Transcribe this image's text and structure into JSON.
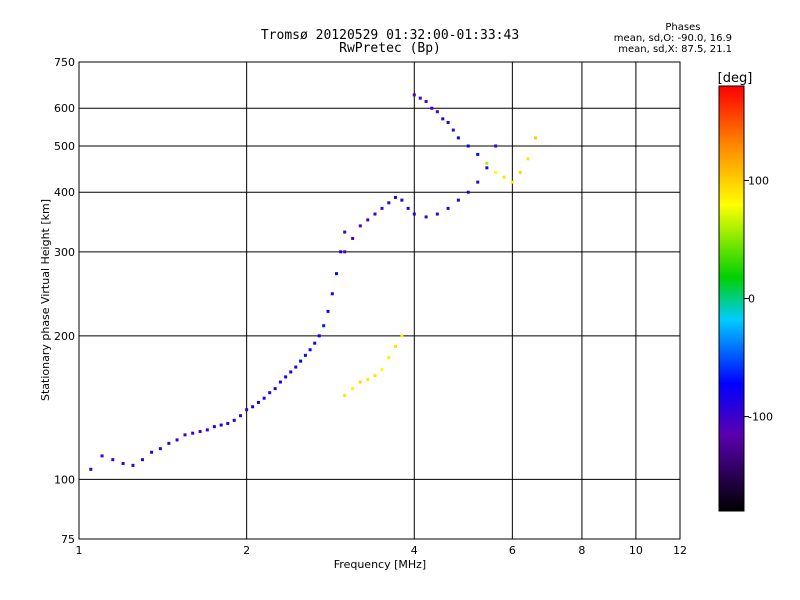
{
  "chart_data": {
    "type": "scatter",
    "title": "Tromsø 20120529 01:32:00-01:33:43",
    "subtitle": "RwPretec (Bp)",
    "xlabel": "Frequency [MHz]",
    "ylabel": "Stationary phase Virtual Height [km]",
    "x_scale": "log",
    "y_scale": "log",
    "xlim": [
      1,
      12
    ],
    "ylim": [
      75,
      750
    ],
    "x_ticks": [
      1,
      2,
      4,
      6,
      8,
      10,
      12
    ],
    "y_ticks": [
      75,
      100,
      200,
      300,
      400,
      500,
      600,
      750
    ],
    "grid": true,
    "colorbar": {
      "label": "[deg]",
      "ticks": [
        100,
        0,
        -100
      ],
      "range": [
        -180,
        180
      ]
    },
    "phases_box": {
      "title": "Phases",
      "line_o": "mean, sd,O: -90.0, 16.9",
      "line_x": "mean, sd,X: 87.5, 21.1"
    },
    "series": [
      {
        "x": [
          1.05,
          1.1,
          1.15,
          1.2,
          1.25,
          1.3,
          1.35,
          1.4,
          1.45,
          1.5,
          1.55,
          1.6,
          1.65,
          1.7,
          1.75,
          1.8,
          1.85,
          1.9,
          1.95,
          2.0,
          2.05,
          2.1,
          2.15,
          2.2,
          2.25,
          2.3,
          2.35,
          2.4,
          2.45,
          2.5,
          2.55,
          2.6,
          2.65,
          2.7,
          2.75,
          2.8,
          2.85,
          2.9,
          2.95,
          3.0
        ],
        "y": [
          105,
          112,
          110,
          108,
          107,
          110,
          114,
          116,
          119,
          121,
          124,
          125,
          126,
          127,
          129,
          130,
          131,
          133,
          136,
          140,
          142,
          145,
          148,
          152,
          155,
          160,
          164,
          168,
          172,
          177,
          182,
          187,
          193,
          200,
          210,
          225,
          245,
          270,
          300,
          330
        ],
        "phase": [
          -95,
          -100,
          -95,
          -98,
          -100,
          -95,
          -92,
          -96,
          -94,
          -100,
          -98,
          -96,
          -102,
          -95,
          -90,
          -88,
          -92,
          -95,
          -97,
          -94,
          -85,
          -80,
          -90,
          -95,
          -88,
          -82,
          -78,
          -85,
          -90,
          -75,
          -70,
          -80,
          -86,
          -72,
          -66,
          -80,
          -90,
          -70,
          -84,
          -100
        ]
      },
      {
        "x": [
          3.0,
          3.1,
          3.2,
          3.3,
          3.4,
          3.5,
          3.6,
          3.7,
          3.8,
          3.9,
          4.0,
          4.2,
          4.4,
          4.6,
          4.8,
          5.0,
          5.2,
          5.4,
          5.6
        ],
        "y": [
          300,
          320,
          340,
          350,
          360,
          370,
          380,
          390,
          385,
          370,
          360,
          355,
          360,
          370,
          385,
          400,
          420,
          450,
          500
        ],
        "phase": [
          -110,
          -120,
          -115,
          -108,
          -100,
          -105,
          -98,
          -95,
          -90,
          -92,
          -96,
          -100,
          -95,
          -90,
          -88,
          -92,
          -95,
          -90,
          -100
        ]
      },
      {
        "x": [
          3.0,
          3.1,
          3.2,
          3.3,
          3.4,
          3.5,
          3.6,
          3.7,
          3.8
        ],
        "y": [
          150,
          155,
          160,
          162,
          165,
          170,
          180,
          190,
          200
        ],
        "phase": [
          90,
          85,
          95,
          88,
          92,
          80,
          86,
          90,
          84
        ]
      },
      {
        "x": [
          4.0,
          4.1,
          4.2,
          4.3,
          4.4,
          4.5,
          4.6,
          4.7,
          4.8,
          5.0,
          5.2,
          5.4,
          5.6,
          5.8,
          6.0,
          6.2,
          6.4,
          6.6
        ],
        "y": [
          640,
          630,
          620,
          600,
          590,
          570,
          560,
          540,
          520,
          500,
          480,
          460,
          440,
          430,
          420,
          440,
          470,
          520
        ],
        "phase": [
          -120,
          -110,
          -105,
          -100,
          -108,
          -95,
          -90,
          -100,
          -85,
          -80,
          -70,
          60,
          80,
          90,
          85,
          95,
          88,
          100
        ]
      }
    ]
  }
}
